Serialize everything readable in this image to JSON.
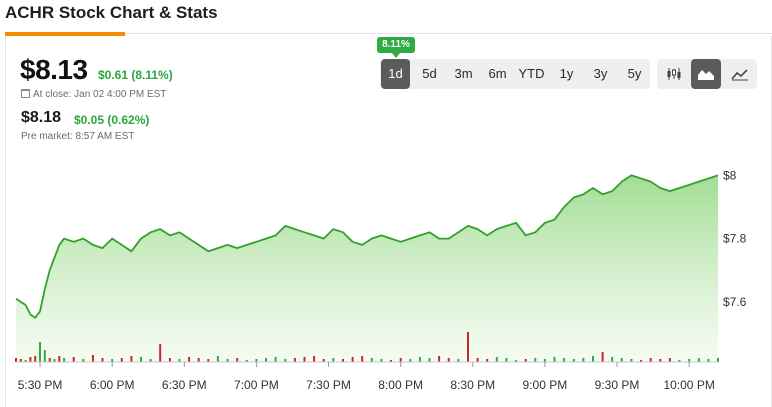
{
  "page": {
    "title": "ACHR Stock Chart & Stats"
  },
  "quote": {
    "close_price": "$8.13",
    "close_change": "$0.61 (8.11%)",
    "close_time": "At close: Jan 02 4:00 PM EST",
    "pre_price": "$8.18",
    "pre_change": "$0.05 (0.62%)",
    "pre_time": "Pre market: 8:57 AM EST"
  },
  "range_badge": "8.11%",
  "ranges": [
    {
      "label": "1d",
      "active": true
    },
    {
      "label": "5d",
      "active": false
    },
    {
      "label": "3m",
      "active": false
    },
    {
      "label": "6m",
      "active": false
    },
    {
      "label": "YTD",
      "active": false
    },
    {
      "label": "1y",
      "active": false
    },
    {
      "label": "3y",
      "active": false
    },
    {
      "label": "5y",
      "active": false
    }
  ],
  "chart_types": [
    {
      "icon": "candlestick-icon",
      "active": false
    },
    {
      "icon": "area-chart-icon",
      "active": true
    },
    {
      "icon": "line-chart-icon",
      "active": false
    }
  ],
  "colors": {
    "line": "#33a02c",
    "fill_top": "#9ddb8e",
    "fill_bottom": "#eaf8e6",
    "up_bar": "#2eab43",
    "down_bar": "#c62828",
    "badge": "#2eab43"
  },
  "chart_data": {
    "type": "area",
    "x": [
      "5:20 PM",
      "5:22 PM",
      "5:24 PM",
      "5:26 PM",
      "5:28 PM",
      "5:30 PM",
      "5:32 PM",
      "5:34 PM",
      "5:36 PM",
      "5:38 PM",
      "5:40 PM",
      "5:44 PM",
      "5:48 PM",
      "5:52 PM",
      "5:56 PM",
      "6:00 PM",
      "6:04 PM",
      "6:08 PM",
      "6:12 PM",
      "6:16 PM",
      "6:20 PM",
      "6:24 PM",
      "6:28 PM",
      "6:32 PM",
      "6:36 PM",
      "6:40 PM",
      "6:44 PM",
      "6:48 PM",
      "6:52 PM",
      "6:56 PM",
      "7:00 PM",
      "7:04 PM",
      "7:08 PM",
      "7:12 PM",
      "7:16 PM",
      "7:20 PM",
      "7:24 PM",
      "7:28 PM",
      "7:32 PM",
      "7:36 PM",
      "7:40 PM",
      "7:44 PM",
      "7:48 PM",
      "7:52 PM",
      "7:56 PM",
      "8:00 PM",
      "8:04 PM",
      "8:08 PM",
      "8:12 PM",
      "8:16 PM",
      "8:20 PM",
      "8:24 PM",
      "8:28 PM",
      "8:32 PM",
      "8:36 PM",
      "8:40 PM",
      "8:44 PM",
      "8:48 PM",
      "8:52 PM",
      "8:56 PM",
      "9:00 PM",
      "9:04 PM",
      "9:08 PM",
      "9:12 PM",
      "9:16 PM",
      "9:20 PM",
      "9:24 PM",
      "9:28 PM",
      "9:32 PM",
      "9:36 PM",
      "9:40 PM",
      "9:44 PM",
      "9:48 PM",
      "9:52 PM",
      "9:56 PM",
      "10:00 PM",
      "10:04 PM",
      "10:08 PM",
      "10:12 PM"
    ],
    "y": [
      7.61,
      7.6,
      7.59,
      7.56,
      7.55,
      7.57,
      7.64,
      7.7,
      7.74,
      7.78,
      7.8,
      7.79,
      7.8,
      7.78,
      7.77,
      7.8,
      7.78,
      7.76,
      7.8,
      7.82,
      7.83,
      7.81,
      7.82,
      7.8,
      7.78,
      7.76,
      7.77,
      7.78,
      7.77,
      7.78,
      7.79,
      7.8,
      7.81,
      7.84,
      7.83,
      7.82,
      7.81,
      7.8,
      7.83,
      7.82,
      7.79,
      7.78,
      7.8,
      7.81,
      7.8,
      7.79,
      7.8,
      7.81,
      7.82,
      7.8,
      7.8,
      7.82,
      7.84,
      7.83,
      7.81,
      7.83,
      7.84,
      7.85,
      7.81,
      7.82,
      7.85,
      7.86,
      7.9,
      7.93,
      7.94,
      7.96,
      7.94,
      7.95,
      7.98,
      8.0,
      7.99,
      7.98,
      7.96,
      7.95,
      7.96,
      7.97,
      7.98,
      7.99,
      8.0
    ],
    "ylim": [
      7.41,
      8.08
    ],
    "y_ticks": [
      "$8",
      "$7.8",
      "$7.6"
    ],
    "y_tick_values": [
      8.0,
      7.8,
      7.6
    ],
    "x_ticks": [
      "5:30 PM",
      "6:00 PM",
      "6:30 PM",
      "7:00 PM",
      "7:30 PM",
      "8:00 PM",
      "8:30 PM",
      "9:00 PM",
      "9:30 PM",
      "10:00 PM"
    ],
    "x_tick_minutes": [
      30,
      60,
      90,
      120,
      150,
      180,
      210,
      240,
      270,
      300
    ],
    "x_start_minutes": 20,
    "x_end_minutes": 312,
    "volume": [
      0.2,
      0.15,
      0.1,
      0.25,
      0.3,
      1.0,
      0.6,
      0.2,
      0.15,
      0.3,
      0.2,
      0.25,
      0.15,
      0.35,
      0.2,
      0.15,
      0.2,
      0.3,
      0.25,
      0.15,
      0.9,
      0.2,
      0.15,
      0.25,
      0.2,
      0.15,
      0.3,
      0.15,
      0.2,
      0.1,
      0.15,
      0.2,
      0.25,
      0.15,
      0.2,
      0.25,
      0.3,
      0.15,
      0.2,
      0.15,
      0.25,
      0.3,
      0.2,
      0.15,
      0.1,
      0.2,
      0.15,
      0.25,
      0.2,
      0.3,
      0.2,
      0.15,
      1.5,
      0.2,
      0.15,
      0.25,
      0.2,
      0.1,
      0.15,
      0.2,
      0.15,
      0.25,
      0.2,
      0.15,
      0.2,
      0.3,
      0.5,
      0.25,
      0.2,
      0.15,
      0.1,
      0.2,
      0.15,
      0.2,
      0.1,
      0.15,
      0.2,
      0.15,
      0.2
    ],
    "volume_up": [
      false,
      false,
      true,
      false,
      false,
      true,
      true,
      false,
      true,
      false,
      true,
      false,
      true,
      false,
      false,
      true,
      false,
      false,
      true,
      true,
      false,
      false,
      true,
      false,
      false,
      false,
      true,
      true,
      false,
      true,
      true,
      true,
      true,
      true,
      false,
      false,
      false,
      false,
      true,
      false,
      false,
      false,
      true,
      true,
      false,
      false,
      true,
      true,
      true,
      false,
      false,
      true,
      false,
      false,
      false,
      true,
      true,
      true,
      false,
      true,
      true,
      true,
      true,
      true,
      true,
      true,
      false,
      true,
      true,
      true,
      false,
      false,
      false,
      false,
      true,
      true,
      true,
      true,
      true
    ]
  }
}
